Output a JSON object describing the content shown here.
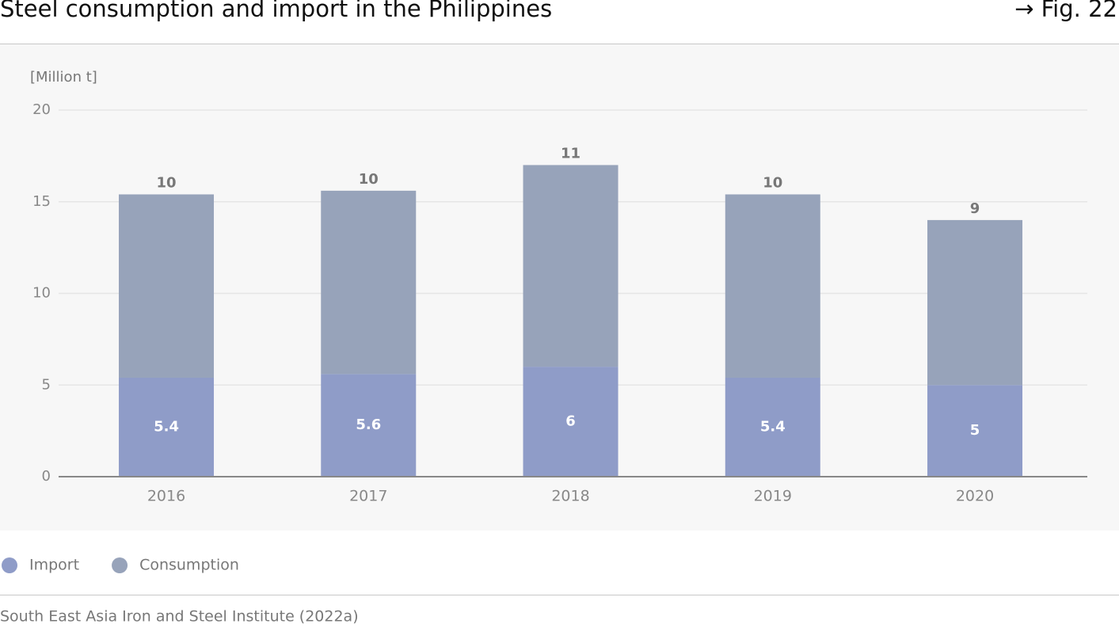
{
  "chart_data": {
    "type": "stacked-bar",
    "title": "Steel consumption and import in the Philippines",
    "figure_label": "→ Fig. 22",
    "y_axis_label": "[Million t]",
    "source": "South East Asia Iron and Steel Institute (2022a)",
    "categories": [
      "2016",
      "2017",
      "2018",
      "2019",
      "2020"
    ],
    "series": [
      {
        "name": "Import",
        "color": "#8f9cc8",
        "values": [
          5.4,
          5.6,
          6,
          5.4,
          5
        ]
      },
      {
        "name": "Consumption",
        "color": "#97a3ba",
        "values": [
          10,
          10,
          11,
          10,
          9
        ]
      }
    ],
    "ylim": [
      0,
      20
    ],
    "yticks": [
      0,
      5,
      10,
      15,
      20
    ],
    "grid": true
  }
}
